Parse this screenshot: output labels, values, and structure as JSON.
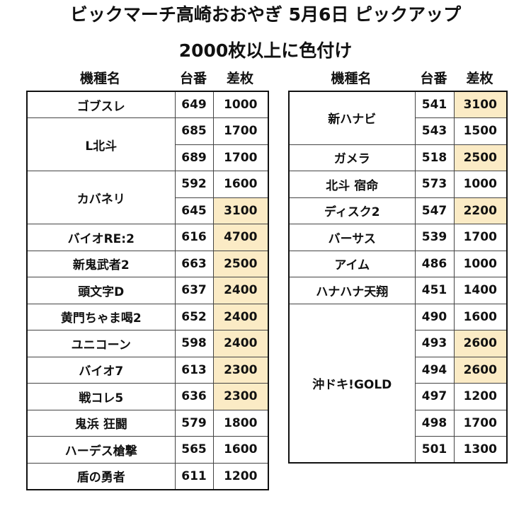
{
  "title_line1": "ビックマーチ高崎おおやぎ 5月6日  ピックアップ",
  "title_line2": "2000枚以上に色付け",
  "headers": {
    "machine": "機種名",
    "number": "台番",
    "diff": "差枚"
  },
  "highlight_threshold": 2000,
  "highlight_color": "#fbebc5",
  "left_table": [
    {
      "machine": "ゴブスレ",
      "units": [
        {
          "number": "649",
          "diff": "1000"
        }
      ]
    },
    {
      "machine": "L北斗",
      "units": [
        {
          "number": "685",
          "diff": "1700"
        },
        {
          "number": "689",
          "diff": "1700"
        }
      ]
    },
    {
      "machine": "カバネリ",
      "units": [
        {
          "number": "592",
          "diff": "1600"
        },
        {
          "number": "645",
          "diff": "3100"
        }
      ]
    },
    {
      "machine": "バイオRE:2",
      "units": [
        {
          "number": "616",
          "diff": "4700"
        }
      ]
    },
    {
      "machine": "新鬼武者2",
      "units": [
        {
          "number": "663",
          "diff": "2500"
        }
      ]
    },
    {
      "machine": "頭文字D",
      "units": [
        {
          "number": "637",
          "diff": "2400"
        }
      ]
    },
    {
      "machine": "黄門ちゃま喝2",
      "units": [
        {
          "number": "652",
          "diff": "2400"
        }
      ]
    },
    {
      "machine": "ユニコーン",
      "units": [
        {
          "number": "598",
          "diff": "2400"
        }
      ]
    },
    {
      "machine": "バイオ7",
      "units": [
        {
          "number": "613",
          "diff": "2300"
        }
      ]
    },
    {
      "machine": "戦コレ5",
      "units": [
        {
          "number": "636",
          "diff": "2300"
        }
      ]
    },
    {
      "machine": "鬼浜 狂闘",
      "units": [
        {
          "number": "579",
          "diff": "1800"
        }
      ]
    },
    {
      "machine": "ハーデス槍撃",
      "units": [
        {
          "number": "565",
          "diff": "1600"
        }
      ]
    },
    {
      "machine": "盾の勇者",
      "units": [
        {
          "number": "611",
          "diff": "1200"
        }
      ]
    }
  ],
  "right_table": [
    {
      "machine": "新ハナビ",
      "units": [
        {
          "number": "541",
          "diff": "3100"
        },
        {
          "number": "543",
          "diff": "1500"
        }
      ]
    },
    {
      "machine": "ガメラ",
      "units": [
        {
          "number": "518",
          "diff": "2500"
        }
      ]
    },
    {
      "machine": "北斗 宿命",
      "units": [
        {
          "number": "573",
          "diff": "1000"
        }
      ]
    },
    {
      "machine": "ディスク2",
      "units": [
        {
          "number": "547",
          "diff": "2200"
        }
      ]
    },
    {
      "machine": "バーサス",
      "units": [
        {
          "number": "539",
          "diff": "1700"
        }
      ]
    },
    {
      "machine": "アイム",
      "units": [
        {
          "number": "486",
          "diff": "1000"
        }
      ]
    },
    {
      "machine": "ハナハナ天翔",
      "units": [
        {
          "number": "451",
          "diff": "1400"
        }
      ]
    },
    {
      "machine": "沖ドキ!GOLD",
      "units": [
        {
          "number": "490",
          "diff": "1600"
        },
        {
          "number": "493",
          "diff": "2600"
        },
        {
          "number": "494",
          "diff": "2600"
        },
        {
          "number": "497",
          "diff": "1200"
        },
        {
          "number": "498",
          "diff": "1700"
        },
        {
          "number": "501",
          "diff": "1300"
        }
      ]
    }
  ]
}
